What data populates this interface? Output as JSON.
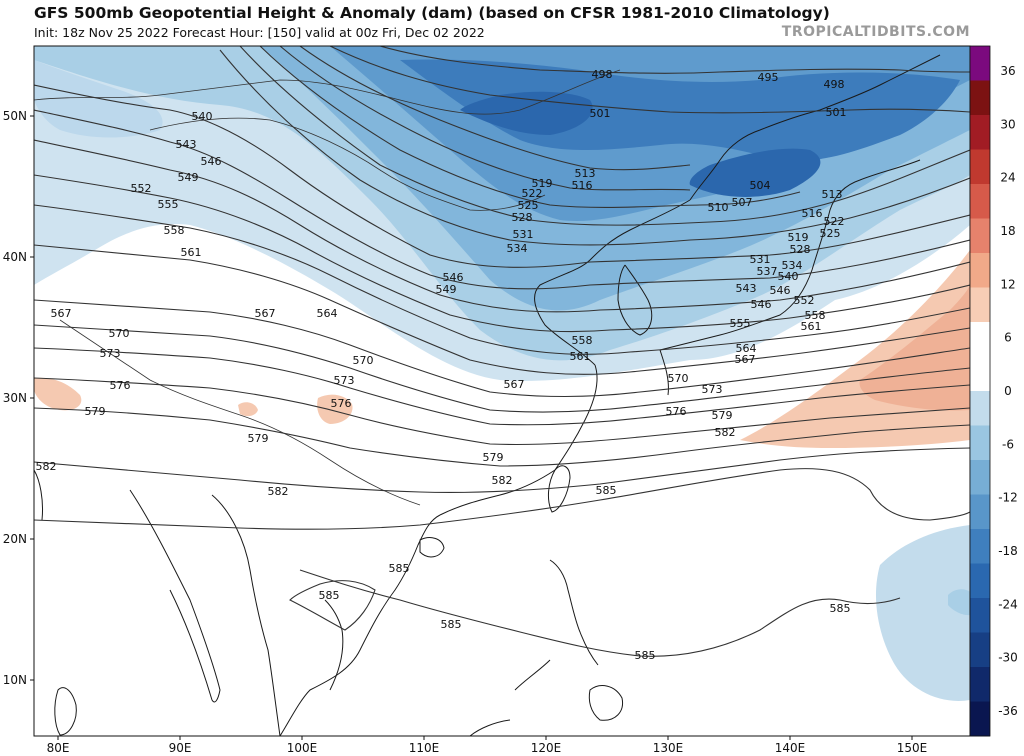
{
  "header": {
    "title": "GFS 500mb Geopotential Height & Anomaly (dam) (based on CFSR 1981-2010 Climatology)",
    "subtitle": "Init: 18z Nov 25 2022   Forecast Hour: [150]   valid at 00z Fri, Dec 02 2022",
    "brand": "TROPICALTIDBITS.COM"
  },
  "axes": {
    "lat_labels": [
      "50N",
      "40N",
      "30N",
      "20N",
      "10N"
    ],
    "lon_labels": [
      "80E",
      "90E",
      "100E",
      "110E",
      "120E",
      "130E",
      "140E",
      "150E"
    ]
  },
  "colorbar": {
    "labels": [
      "36",
      "30",
      "24",
      "18",
      "12",
      "6",
      "0",
      "-6",
      "-12",
      "-18",
      "-24",
      "-30",
      "-36"
    ],
    "colors": [
      "#7b0a7e",
      "#7c1212",
      "#a11c24",
      "#c0392f",
      "#d65a4a",
      "#e6826c",
      "#f1a989",
      "#f7cdb5",
      "#ffffff",
      "#ffffff",
      "#c3dcec",
      "#9ac6e1",
      "#77aed5",
      "#5996c9",
      "#3f7fbe",
      "#2a68b0",
      "#1f539c",
      "#173f84",
      "#10296a",
      "#0a1650"
    ]
  },
  "contours": [
    {
      "value": "495",
      "pos": [
        768,
        77
      ]
    },
    {
      "value": "498",
      "pos": [
        602,
        74
      ]
    },
    {
      "value": "498",
      "pos": [
        834,
        84
      ]
    },
    {
      "value": "501",
      "pos": [
        600,
        113
      ]
    },
    {
      "value": "501",
      "pos": [
        836,
        112
      ]
    },
    {
      "value": "504",
      "pos": [
        760,
        185
      ]
    },
    {
      "value": "507",
      "pos": [
        742,
        202
      ]
    },
    {
      "value": "510",
      "pos": [
        718,
        207
      ]
    },
    {
      "value": "513",
      "pos": [
        585,
        173
      ]
    },
    {
      "value": "516",
      "pos": [
        582,
        185
      ]
    },
    {
      "value": "519",
      "pos": [
        542,
        183
      ]
    },
    {
      "value": "522",
      "pos": [
        532,
        193
      ]
    },
    {
      "value": "525",
      "pos": [
        528,
        205
      ]
    },
    {
      "value": "528",
      "pos": [
        522,
        217
      ]
    },
    {
      "value": "531",
      "pos": [
        523,
        234
      ]
    },
    {
      "value": "534",
      "pos": [
        517,
        248
      ]
    },
    {
      "value": "546",
      "pos": [
        453,
        277
      ]
    },
    {
      "value": "549",
      "pos": [
        446,
        289
      ]
    },
    {
      "value": "540",
      "pos": [
        202,
        116
      ]
    },
    {
      "value": "543",
      "pos": [
        186,
        144
      ]
    },
    {
      "value": "546",
      "pos": [
        211,
        161
      ]
    },
    {
      "value": "549",
      "pos": [
        188,
        177
      ]
    },
    {
      "value": "552",
      "pos": [
        141,
        188
      ]
    },
    {
      "value": "555",
      "pos": [
        168,
        204
      ]
    },
    {
      "value": "558",
      "pos": [
        174,
        230
      ]
    },
    {
      "value": "561",
      "pos": [
        191,
        252
      ]
    },
    {
      "value": "564",
      "pos": [
        327,
        313
      ]
    },
    {
      "value": "567",
      "pos": [
        61,
        313
      ]
    },
    {
      "value": "567",
      "pos": [
        265,
        313
      ]
    },
    {
      "value": "567",
      "pos": [
        514,
        384
      ]
    },
    {
      "value": "570",
      "pos": [
        119,
        333
      ]
    },
    {
      "value": "570",
      "pos": [
        363,
        360
      ]
    },
    {
      "value": "573",
      "pos": [
        110,
        353
      ]
    },
    {
      "value": "573",
      "pos": [
        344,
        380
      ]
    },
    {
      "value": "576",
      "pos": [
        120,
        385
      ]
    },
    {
      "value": "576",
      "pos": [
        341,
        403
      ]
    },
    {
      "value": "579",
      "pos": [
        95,
        411
      ]
    },
    {
      "value": "579",
      "pos": [
        258,
        438
      ]
    },
    {
      "value": "579",
      "pos": [
        493,
        457
      ]
    },
    {
      "value": "582",
      "pos": [
        46,
        466
      ]
    },
    {
      "value": "582",
      "pos": [
        278,
        491
      ]
    },
    {
      "value": "582",
      "pos": [
        502,
        480
      ]
    },
    {
      "value": "585",
      "pos": [
        606,
        490
      ]
    },
    {
      "value": "585",
      "pos": [
        399,
        568
      ]
    },
    {
      "value": "585",
      "pos": [
        329,
        595
      ]
    },
    {
      "value": "585",
      "pos": [
        451,
        624
      ]
    },
    {
      "value": "585",
      "pos": [
        645,
        655
      ]
    },
    {
      "value": "585",
      "pos": [
        840,
        608
      ]
    },
    {
      "value": "558",
      "pos": [
        582,
        340
      ]
    },
    {
      "value": "561",
      "pos": [
        580,
        356
      ]
    },
    {
      "value": "570",
      "pos": [
        678,
        378
      ]
    },
    {
      "value": "573",
      "pos": [
        712,
        389
      ]
    },
    {
      "value": "576",
      "pos": [
        676,
        411
      ]
    },
    {
      "value": "579",
      "pos": [
        722,
        415
      ]
    },
    {
      "value": "582",
      "pos": [
        725,
        432
      ]
    },
    {
      "value": "564",
      "pos": [
        746,
        348
      ]
    },
    {
      "value": "567",
      "pos": [
        745,
        359
      ]
    },
    {
      "value": "555",
      "pos": [
        740,
        323
      ]
    },
    {
      "value": "558",
      "pos": [
        815,
        315
      ]
    },
    {
      "value": "561",
      "pos": [
        811,
        326
      ]
    },
    {
      "value": "552",
      "pos": [
        804,
        300
      ]
    },
    {
      "value": "546",
      "pos": [
        780,
        290
      ]
    },
    {
      "value": "546",
      "pos": [
        761,
        304
      ]
    },
    {
      "value": "543",
      "pos": [
        746,
        288
      ]
    },
    {
      "value": "540",
      "pos": [
        788,
        276
      ]
    },
    {
      "value": "537",
      "pos": [
        767,
        271
      ]
    },
    {
      "value": "534",
      "pos": [
        792,
        265
      ]
    },
    {
      "value": "531",
      "pos": [
        760,
        259
      ]
    },
    {
      "value": "528",
      "pos": [
        800,
        249
      ]
    },
    {
      "value": "525",
      "pos": [
        830,
        233
      ]
    },
    {
      "value": "522",
      "pos": [
        834,
        221
      ]
    },
    {
      "value": "519",
      "pos": [
        798,
        237
      ]
    },
    {
      "value": "516",
      "pos": [
        812,
        213
      ]
    },
    {
      "value": "513",
      "pos": [
        832,
        194
      ]
    }
  ]
}
